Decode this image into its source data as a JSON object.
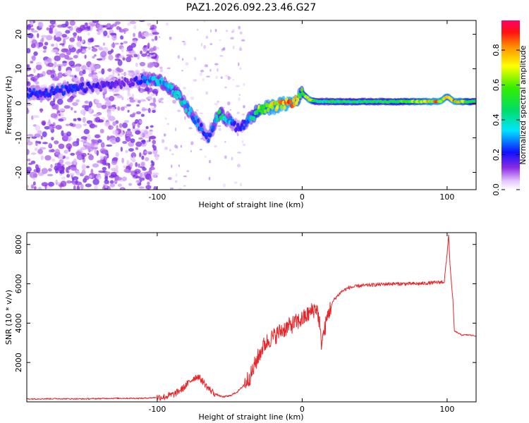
{
  "title": "PAZ1.2026.092.23.46.G27",
  "colors": {
    "snr_line": "#e8262a",
    "frame": "#000000",
    "background": "#ffffff"
  },
  "chart_data": [
    {
      "type": "heatmap",
      "name": "spectrogram",
      "xlabel": "Height of straight line (km)",
      "ylabel": "Frequency (Hz)",
      "xlim": [
        -190,
        120
      ],
      "ylim": [
        -25,
        24
      ],
      "x_ticks": [
        -100,
        0,
        100
      ],
      "x_tick_labels": [
        "-100",
        "0",
        "100"
      ],
      "y_ticks": [
        20,
        10,
        0,
        -10,
        -20
      ],
      "y_tick_labels": [
        "20",
        "10",
        "0",
        "-10",
        "-20"
      ],
      "colorbar": {
        "label": "Normalized spectral amplitude",
        "range": [
          0,
          0.97
        ],
        "ticks": [
          0.0,
          0.2,
          0.4,
          0.6,
          0.8
        ],
        "tick_labels": [
          "0.0",
          "0.2",
          "0.4",
          "0.6",
          "0.8"
        ]
      },
      "ridge": {
        "x": [
          -180,
          -160,
          -140,
          -120,
          -105,
          -95,
          -85,
          -75,
          -65,
          -57,
          -50,
          -45,
          -40,
          -35,
          -30,
          -20,
          -10,
          -5,
          0,
          5,
          10,
          20,
          40,
          60,
          80,
          95,
          100,
          105,
          120
        ],
        "freq": [
          3,
          4,
          5,
          6,
          7,
          6,
          2,
          -4,
          -10,
          -3,
          -5,
          -7,
          -6,
          -4,
          -2,
          -1,
          0,
          0.5,
          3,
          1,
          0.5,
          0.5,
          0.5,
          0.5,
          0.5,
          0.5,
          2,
          0.5,
          0.5
        ],
        "amplitude": [
          0.25,
          0.25,
          0.2,
          0.15,
          0.35,
          0.4,
          0.45,
          0.35,
          0.25,
          0.5,
          0.35,
          0.2,
          0.25,
          0.45,
          0.7,
          0.85,
          0.9,
          0.9,
          0.6,
          0.9,
          0.5,
          0.55,
          0.55,
          0.55,
          0.75,
          0.9,
          0.8,
          0.9,
          0.55
        ]
      }
    },
    {
      "type": "line",
      "name": "snr",
      "xlabel": "Height of straight line (km)",
      "ylabel": "SNR (10 * v/v)",
      "xlim": [
        -190,
        120
      ],
      "ylim": [
        0,
        8600
      ],
      "x_ticks": [
        -100,
        0,
        100
      ],
      "x_tick_labels": [
        "-100",
        "0",
        "100"
      ],
      "y_ticks": [
        2000,
        4000,
        6000,
        8000
      ],
      "y_tick_labels": [
        "2000",
        "4000",
        "6000",
        "8000"
      ],
      "series": [
        {
          "name": "SNR",
          "x": [
            -190,
            -170,
            -150,
            -130,
            -110,
            -95,
            -88,
            -82,
            -78,
            -75,
            -72,
            -68,
            -65,
            -60,
            -55,
            -50,
            -45,
            -42,
            -38,
            -35,
            -32,
            -29,
            -27,
            -25,
            -22,
            -18,
            -15,
            -10,
            -5,
            0,
            5,
            8,
            10,
            12,
            13,
            15,
            18,
            22,
            27,
            32,
            40,
            50,
            60,
            70,
            80,
            90,
            98,
            100,
            101,
            102,
            103,
            104,
            105,
            110,
            115,
            120
          ],
          "y": [
            150,
            160,
            150,
            180,
            180,
            250,
            400,
            700,
            1000,
            1200,
            1300,
            1000,
            700,
            400,
            250,
            300,
            500,
            700,
            1100,
            1400,
            2000,
            2500,
            2800,
            3000,
            3200,
            3400,
            3600,
            3800,
            4000,
            4200,
            4500,
            4700,
            4800,
            4000,
            3000,
            3500,
            4500,
            5200,
            5600,
            5800,
            5900,
            5950,
            6000,
            6000,
            6000,
            6050,
            6100,
            7500,
            8500,
            7000,
            6000,
            5200,
            3600,
            3400,
            3400,
            3350
          ]
        }
      ]
    }
  ]
}
